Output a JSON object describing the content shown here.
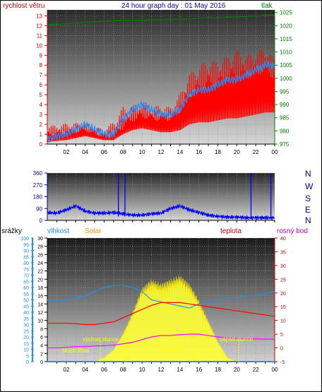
{
  "header": {
    "wind_label": "rychlost větru",
    "title": "24 hour graph day : 01 May 2016",
    "pressure_label": "tlak"
  },
  "panel2": {
    "compass": [
      "N",
      "W",
      "S",
      "E",
      "N"
    ]
  },
  "panel3": {
    "rain_label": "srážky",
    "humidity_label": "vlhkost",
    "solar_label": "Solar",
    "temp_label": "teplota",
    "dew_label": "rosný bod",
    "annotations": {
      "sunrise": "východ slunce",
      "sunset": "západ slunce",
      "moonrise": "Moon Rise",
      "moonset": "MoonSet"
    }
  },
  "colors": {
    "wind_gust": "#ff0000",
    "wind_avg": "#1e90ff",
    "pressure": "#008000",
    "direction": "#0000ff",
    "humidity": "#1e90ff",
    "solar": "#ffff33",
    "temperature": "#ff0000",
    "dewpoint": "#ff00ff",
    "rain": "#1e90ff"
  },
  "chart_data": [
    {
      "type": "line",
      "name": "wind-pressure",
      "x_ticks": [
        "02",
        "04",
        "06",
        "08",
        "10",
        "12",
        "14",
        "16",
        "18",
        "20",
        "22",
        "00"
      ],
      "wind_ticks": [
        0,
        1,
        2,
        3,
        4,
        5,
        6,
        7,
        8,
        9,
        10,
        11,
        12,
        13
      ],
      "wind_ylim": [
        0,
        13.6
      ],
      "pressure_ticks": [
        975,
        980,
        985,
        990,
        995,
        1000,
        1005,
        1010,
        1015,
        1020,
        1025
      ],
      "pressure_ylim": [
        975,
        1026
      ],
      "hours": [
        0,
        1,
        2,
        3,
        4,
        5,
        6,
        7,
        8,
        9,
        10,
        11,
        12,
        13,
        14,
        15,
        16,
        17,
        18,
        19,
        20,
        21,
        22,
        23,
        24
      ],
      "gust_max": [
        2.5,
        2.5,
        3,
        3,
        3,
        2.5,
        2.5,
        4,
        6,
        5.5,
        6,
        5,
        5,
        4.5,
        6,
        8,
        8.5,
        9,
        8.5,
        9,
        9.5,
        9,
        9.5,
        10,
        9
      ],
      "wind_avg": [
        0.5,
        0.8,
        1,
        1.5,
        2,
        1.5,
        1,
        1,
        2.5,
        3.5,
        4,
        3.5,
        3,
        3,
        3.5,
        5,
        5.5,
        5.5,
        6,
        6.5,
        6.5,
        7,
        7.5,
        8,
        8
      ],
      "pressure": [
        1020.5,
        1020.5,
        1020.8,
        1021,
        1021.2,
        1021.5,
        1021.7,
        1021.8,
        1022,
        1022,
        1022,
        1022.2,
        1022.2,
        1022.3,
        1022.5,
        1022.6,
        1022.8,
        1023,
        1023,
        1023.2,
        1023.3,
        1023.5,
        1023.7,
        1024,
        1024
      ]
    },
    {
      "type": "line",
      "name": "wind-direction",
      "y_ticks": [
        0,
        90,
        180,
        270,
        360
      ],
      "ylim": [
        0,
        360
      ],
      "hours": [
        0,
        1,
        2,
        3,
        4,
        5,
        6,
        7,
        8,
        9,
        10,
        11,
        12,
        13,
        14,
        15,
        16,
        17,
        18,
        19,
        20,
        21,
        22,
        23,
        24
      ],
      "direction": [
        60,
        55,
        80,
        110,
        70,
        55,
        55,
        60,
        50,
        40,
        40,
        50,
        55,
        90,
        110,
        80,
        60,
        40,
        30,
        25,
        25,
        20,
        20,
        20,
        20
      ]
    },
    {
      "type": "line",
      "name": "humidity-solar-temperature",
      "x_ticks": [
        "02",
        "04",
        "06",
        "08",
        "10",
        "12",
        "14",
        "16",
        "18",
        "20",
        "22",
        "00"
      ],
      "rain_ticks": [
        0,
        5,
        10,
        15,
        20,
        25,
        30,
        35,
        40,
        45,
        50,
        55,
        60,
        65,
        70,
        75,
        80,
        85,
        90,
        95,
        100
      ],
      "rain_ylim": [
        0,
        100
      ],
      "solar_ticks": [
        0,
        2,
        4,
        6,
        8,
        10,
        12,
        14,
        16,
        18,
        20,
        22,
        24,
        26,
        28,
        30
      ],
      "solar_ylim": [
        0,
        30
      ],
      "temp_ticks": [
        -5,
        0,
        5,
        10,
        15,
        20,
        25,
        30,
        35,
        40
      ],
      "temp_ylim": [
        -5,
        40
      ],
      "hours": [
        0,
        1,
        2,
        3,
        4,
        5,
        6,
        7,
        8,
        9,
        10,
        11,
        12,
        13,
        14,
        15,
        16,
        17,
        18,
        19,
        20,
        21,
        22,
        23,
        24
      ],
      "humidity": [
        15,
        15,
        15,
        15.5,
        16,
        17,
        18,
        18.5,
        18.5,
        18,
        17,
        15,
        14.5,
        14,
        13.5,
        13,
        14,
        14.5,
        15,
        15.5,
        15.5,
        16,
        16,
        16.5,
        17
      ],
      "solar": [
        0,
        0,
        0,
        0,
        0,
        0,
        1,
        3,
        7,
        12,
        18,
        20,
        19,
        20,
        21,
        19,
        15,
        10,
        5,
        1,
        0,
        0,
        0,
        0,
        0
      ],
      "temperature": [
        9,
        9,
        9,
        8.8,
        8.5,
        8.5,
        9,
        9.5,
        11,
        12.5,
        14,
        15.5,
        16.5,
        16.5,
        16.5,
        16,
        15.5,
        15,
        14.5,
        14,
        13.5,
        13,
        12.5,
        12,
        11.5
      ],
      "dewpoint": [
        0,
        0,
        0.2,
        0.5,
        0.5,
        0.7,
        0.8,
        1,
        1.5,
        2,
        3,
        4,
        4.5,
        4.5,
        4.8,
        5,
        5,
        4.5,
        4,
        3.5,
        3.5,
        3.3,
        3.3,
        3.2,
        3.2
      ],
      "rain": [
        0,
        0,
        0,
        0,
        0,
        0,
        0,
        0,
        0,
        0,
        0,
        0,
        0,
        0,
        0,
        0,
        0,
        0,
        0,
        0,
        0,
        0,
        0,
        0,
        0
      ]
    }
  ]
}
